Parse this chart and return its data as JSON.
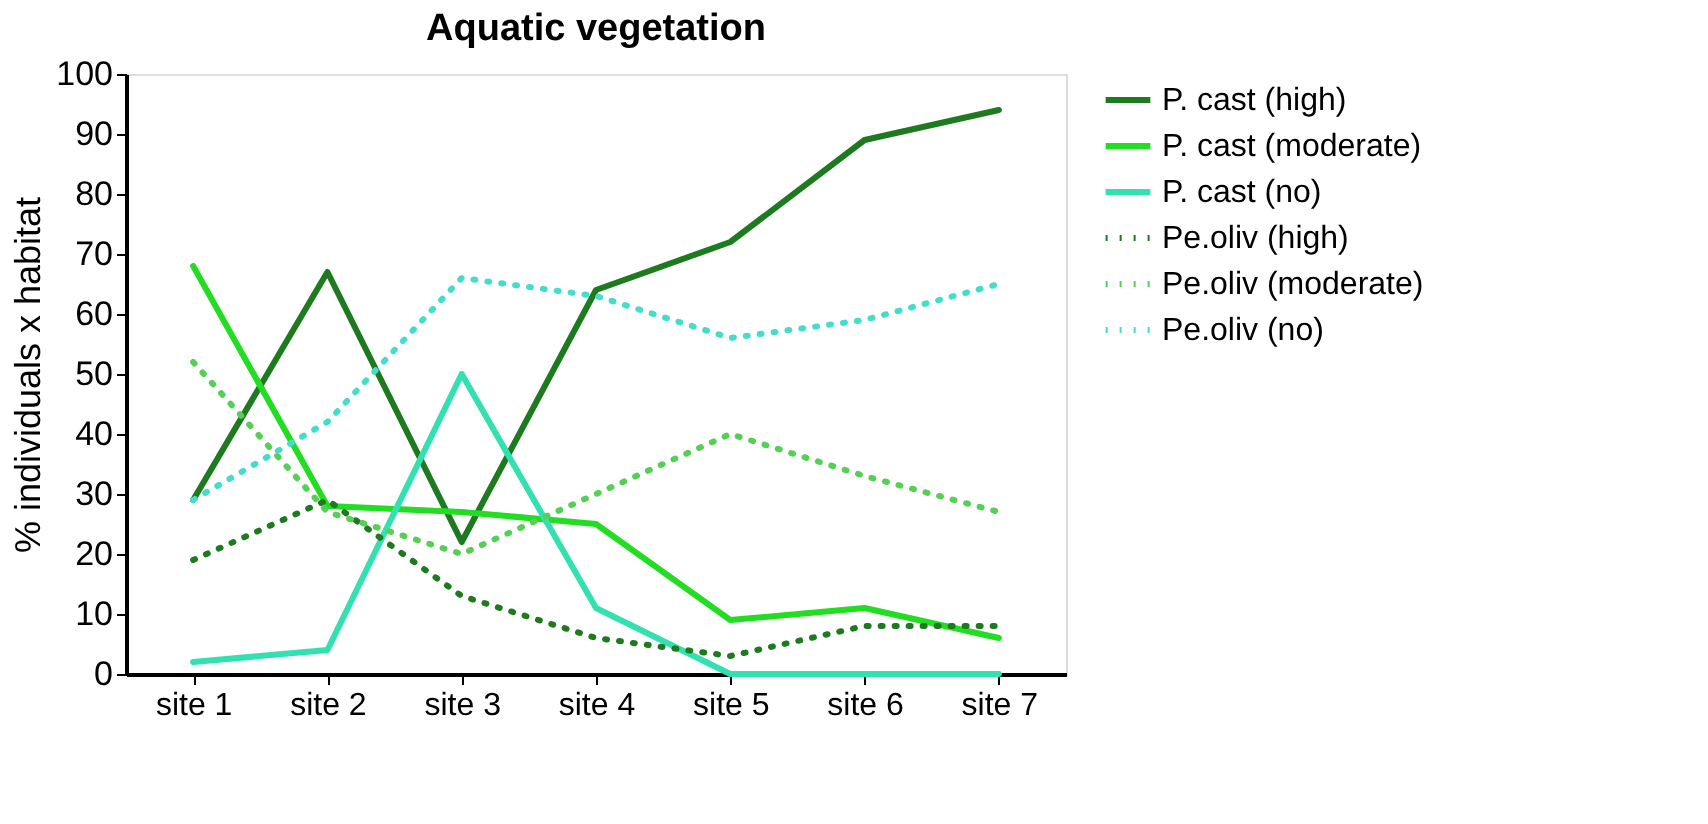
{
  "chart_data": {
    "type": "line",
    "title": "Aquatic vegetation",
    "ylabel": "% individuals x habitat",
    "categories": [
      "site 1",
      "site 2",
      "site 3",
      "site 4",
      "site 5",
      "site 6",
      "site 7"
    ],
    "ylim": [
      0,
      100
    ],
    "yticks": [
      0,
      10,
      20,
      30,
      40,
      50,
      60,
      70,
      80,
      90,
      100
    ],
    "grid": false,
    "legend": "right",
    "marker": "none",
    "series": [
      {
        "name": "P. cast (high)",
        "color": "#1e7a1e",
        "line_style": "solid",
        "values": [
          29,
          67,
          22,
          64,
          72,
          89,
          94
        ]
      },
      {
        "name": "P. cast (moderate)",
        "color": "#22dd22",
        "line_style": "solid",
        "values": [
          68,
          28,
          27,
          25,
          9,
          11,
          6
        ]
      },
      {
        "name": "P. cast (no)",
        "color": "#33e0b0",
        "line_style": "solid",
        "values": [
          2,
          4,
          50,
          11,
          0,
          0,
          0
        ]
      },
      {
        "name": "Pe.oliv (high)",
        "color": "#1e7a1e",
        "line_style": "dotted",
        "values": [
          19,
          29,
          13,
          6,
          3,
          8,
          8
        ]
      },
      {
        "name": "Pe.oliv (moderate)",
        "color": "#55d055",
        "line_style": "dotted",
        "values": [
          52,
          27,
          20,
          30,
          40,
          33,
          27
        ]
      },
      {
        "name": "Pe.oliv (no)",
        "color": "#44ddcc",
        "line_style": "dotted",
        "values": [
          29,
          42,
          66,
          63,
          56,
          59,
          65
        ]
      }
    ]
  }
}
